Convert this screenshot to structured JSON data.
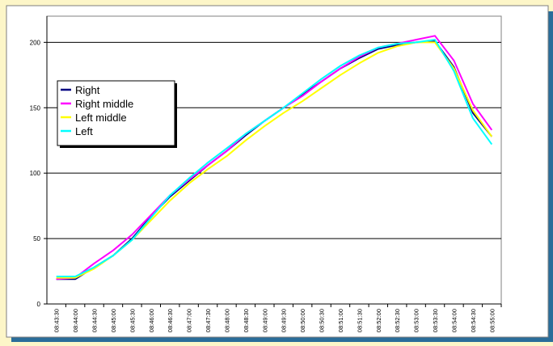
{
  "chart_data": {
    "type": "line",
    "title": "",
    "xlabel": "",
    "ylabel": "",
    "ylim": [
      0,
      220
    ],
    "yticks": [
      0,
      50,
      100,
      150,
      200
    ],
    "grid": true,
    "legend_position": "middle-left",
    "x": [
      "08:43:30",
      "08:44:00",
      "08:44:30",
      "08:45:00",
      "08:45:30",
      "08:46:00",
      "08:46:30",
      "08:47:00",
      "08:47:30",
      "08:48:00",
      "08:48:30",
      "08:49:00",
      "08:49:30",
      "08:50:00",
      "08:50:30",
      "08:51:00",
      "08:51:30",
      "08:52:00",
      "08:52:30",
      "08:53:00",
      "08:53:30",
      "08:54:00",
      "08:54:30",
      "08:55:00"
    ],
    "series": [
      {
        "name": "Right",
        "color": "#000080",
        "values": [
          19,
          19,
          28,
          37,
          50,
          67,
          82,
          94,
          106,
          117,
          129,
          140,
          150,
          160,
          170,
          180,
          188,
          195,
          198,
          200,
          201,
          181,
          146,
          128
        ]
      },
      {
        "name": "Right middle",
        "color": "#ff00ff",
        "values": [
          19,
          20,
          31,
          41,
          53,
          68,
          83,
          95,
          106,
          117,
          130,
          140,
          150,
          159,
          170,
          180,
          189,
          196,
          199,
          202,
          205,
          186,
          153,
          133
        ]
      },
      {
        "name": "Left middle",
        "color": "#ffff00",
        "values": [
          20,
          20,
          27,
          37,
          49,
          64,
          79,
          92,
          103,
          113,
          125,
          136,
          146,
          155,
          165,
          175,
          184,
          192,
          197,
          200,
          200,
          180,
          148,
          128
        ]
      },
      {
        "name": "Left",
        "color": "#00ffff",
        "values": [
          21,
          21,
          28,
          37,
          49,
          66,
          83,
          96,
          108,
          119,
          130,
          140,
          150,
          161,
          172,
          182,
          190,
          196,
          199,
          200,
          202,
          178,
          142,
          122
        ]
      }
    ]
  }
}
